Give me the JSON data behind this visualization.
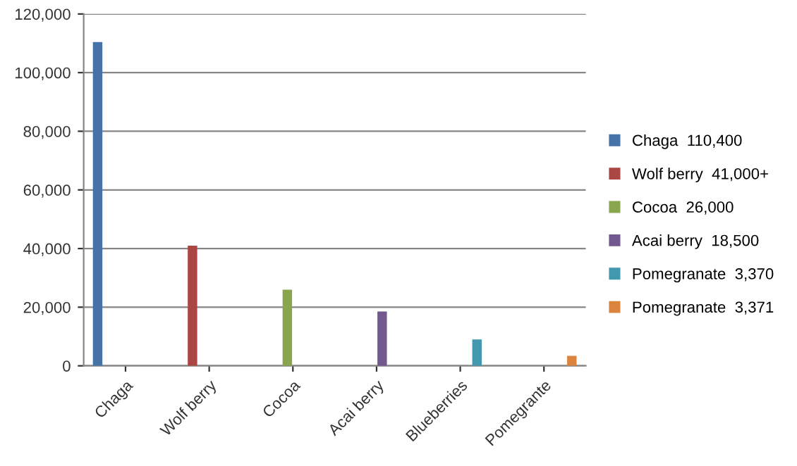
{
  "chart_data": {
    "type": "bar",
    "categories": [
      "Chaga",
      "Wolf berry",
      "Cocoa",
      "Acai berry",
      "Blueberries",
      "Pomegrante"
    ],
    "series": [
      {
        "name": "Chaga  110,400",
        "color": "#4572a7",
        "values": [
          110400,
          null,
          null,
          null,
          null,
          null
        ]
      },
      {
        "name": "Wolf berry  41,000+",
        "color": "#aa4643",
        "values": [
          null,
          41000,
          null,
          null,
          null,
          null
        ]
      },
      {
        "name": "Cocoa  26,000",
        "color": "#89a54e",
        "values": [
          null,
          null,
          26000,
          null,
          null,
          null
        ]
      },
      {
        "name": "Acai berry  18,500",
        "color": "#71588f",
        "values": [
          null,
          null,
          null,
          18500,
          null,
          null
        ]
      },
      {
        "name": "Pomegranate  3,370",
        "color": "#4198af",
        "values": [
          null,
          null,
          null,
          null,
          9000,
          null
        ]
      },
      {
        "name": "Pomegranate  3,371",
        "color": "#db843d",
        "values": [
          null,
          null,
          null,
          null,
          null,
          3400
        ]
      }
    ],
    "ylim": [
      0,
      120000
    ],
    "yticks": [
      {
        "value": 0,
        "label": "0"
      },
      {
        "value": 20000,
        "label": "20,000"
      },
      {
        "value": 40000,
        "label": "40,000"
      },
      {
        "value": 60000,
        "label": "60,000"
      },
      {
        "value": 80000,
        "label": "80,000"
      },
      {
        "value": 100000,
        "label": "100,000"
      },
      {
        "value": 120000,
        "label": "120,000"
      }
    ],
    "grid": "y",
    "legend": "right"
  }
}
